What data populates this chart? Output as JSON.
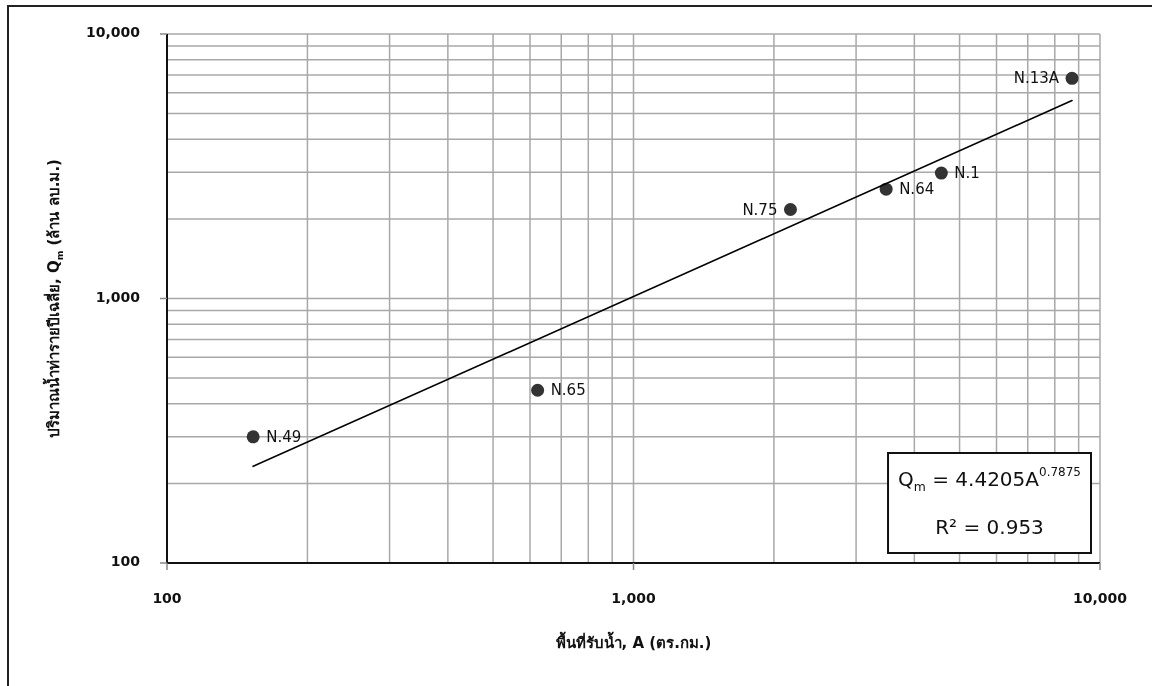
{
  "chart_data": {
    "type": "scatter",
    "xlabel": "พื้นที่รับน้ำ, A (ตร.กม.)",
    "ylabel": "ปริมาณน้ำท่ารายปีเฉลี่ย, Q$_{m}$ (ล้าน ลบ.ม.)",
    "log": "xy",
    "xlim": [
      100,
      10000
    ],
    "ylim": [
      100,
      10000
    ],
    "xticks": [
      100,
      {
        "value": 1000,
        "label": "1,000"
      },
      {
        "value": 10000,
        "label": "10,000"
      }
    ],
    "yticks": [
      100,
      {
        "value": 1000,
        "label": "1,000"
      },
      {
        "value": 10000,
        "label": "10,000"
      }
    ],
    "grid": true,
    "marker": "circle",
    "series": [
      {
        "color": "#333333",
        "x": [
          153,
          623,
          2170,
          3480,
          4570,
          8710
        ],
        "values": [
          300,
          450,
          2170,
          2590,
          2980,
          6800
        ]
      },
      {
        "type": "line",
        "color": "#000000",
        "marker": "none",
        "x": [
          153,
          8710
        ],
        "values": [
          232,
          5600
        ]
      }
    ],
    "annotations": [
      {
        "text": "N.49",
        "x": 153,
        "y": 300
      },
      {
        "text": "N.65",
        "x": 623,
        "y": 450
      },
      {
        "text": "N.75",
        "x": 2170,
        "y": 2170
      },
      {
        "text": "N.64",
        "x": 3480,
        "y": 2590
      },
      {
        "text": "N.1",
        "x": 4570,
        "y": 2980
      },
      {
        "text": "N.13A",
        "x": 8710,
        "y": 6800
      },
      "Q$_{m}$ = 4.4205A$^{0.7875}$",
      "R² = 0.953"
    ]
  }
}
